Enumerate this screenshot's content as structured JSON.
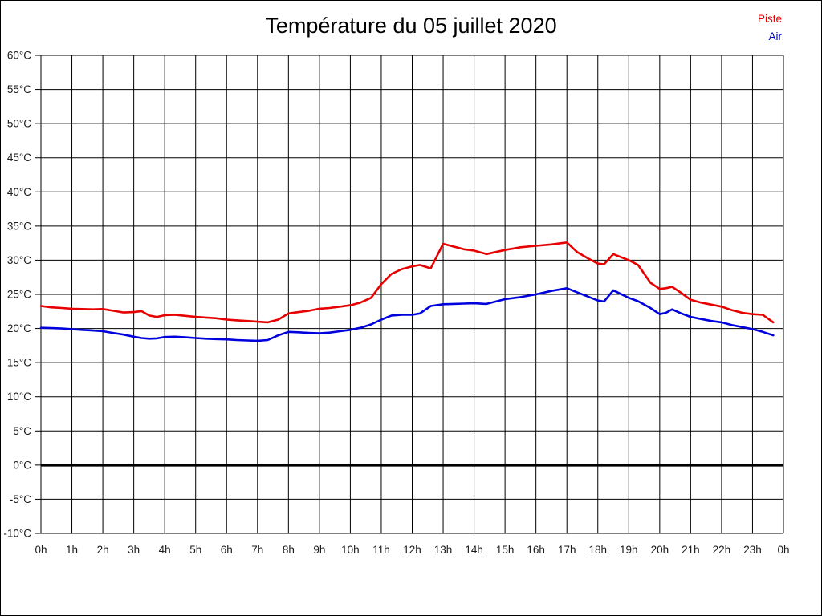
{
  "title": "Température du 05 juillet 2020",
  "legend": {
    "piste": "Piste",
    "air": "Air"
  },
  "colors": {
    "piste": "#e60000",
    "air": "#0000dd",
    "grid": "#000000",
    "zero_line": "#000000",
    "background": "#ffffff"
  },
  "chart_data": {
    "type": "line",
    "title": "Température du 05 juillet 2020",
    "xlabel": "",
    "ylabel": "",
    "xlim": [
      0,
      24
    ],
    "ylim": [
      -10,
      60
    ],
    "y_step": 5,
    "x_step_hours": 1,
    "grid": true,
    "zero_line_at": 0,
    "legend_position": "top-right",
    "x_tick_labels": [
      "0h",
      "1h",
      "2h",
      "3h",
      "4h",
      "5h",
      "6h",
      "7h",
      "8h",
      "9h",
      "10h",
      "11h",
      "12h",
      "13h",
      "14h",
      "15h",
      "16h",
      "17h",
      "18h",
      "19h",
      "20h",
      "21h",
      "22h",
      "23h",
      "0h"
    ],
    "y_tick_labels": [
      "60°C",
      "55°C",
      "50°C",
      "45°C",
      "40°C",
      "35°C",
      "30°C",
      "25°C",
      "20°C",
      "15°C",
      "10°C",
      "5°C",
      "0°C",
      "-5°C",
      "-10°C"
    ],
    "x_hours": [
      0,
      0.33,
      0.67,
      1,
      1.33,
      1.67,
      2,
      2.33,
      2.67,
      3,
      3.25,
      3.5,
      3.75,
      4,
      4.33,
      4.67,
      5,
      5.33,
      5.67,
      6,
      6.33,
      6.67,
      7,
      7.33,
      7.67,
      8,
      8.33,
      8.67,
      9,
      9.33,
      9.67,
      10,
      10.33,
      10.67,
      11,
      11.33,
      11.67,
      12,
      12.25,
      12.6,
      13,
      13.33,
      13.67,
      14,
      14.4,
      15,
      15.5,
      16,
      16.5,
      17,
      17.33,
      17.67,
      18,
      18.2,
      18.5,
      19,
      19.3,
      19.7,
      20,
      20.2,
      20.4,
      20.7,
      21,
      21.33,
      21.67,
      22,
      22.33,
      22.67,
      23,
      23.33,
      23.67
    ],
    "series": [
      {
        "name": "Piste",
        "color": "#e60000",
        "values": [
          23.3,
          23.1,
          23.0,
          22.9,
          22.85,
          22.8,
          22.85,
          22.6,
          22.35,
          22.4,
          22.55,
          21.9,
          21.7,
          21.95,
          22.0,
          21.85,
          21.7,
          21.6,
          21.5,
          21.3,
          21.2,
          21.1,
          21.0,
          20.9,
          21.3,
          22.2,
          22.4,
          22.6,
          22.9,
          23.0,
          23.2,
          23.4,
          23.8,
          24.5,
          26.5,
          28.0,
          28.7,
          29.1,
          29.3,
          28.8,
          32.4,
          32.0,
          31.6,
          31.4,
          30.9,
          31.5,
          31.9,
          32.1,
          32.3,
          32.6,
          31.2,
          30.3,
          29.5,
          29.4,
          30.9,
          30.0,
          29.3,
          26.7,
          25.8,
          25.9,
          26.1,
          25.2,
          24.2,
          23.8,
          23.5,
          23.2,
          22.7,
          22.3,
          22.1,
          22.0,
          20.9
        ]
      },
      {
        "name": "Air",
        "color": "#0000dd",
        "values": [
          20.1,
          20.05,
          20.0,
          19.9,
          19.8,
          19.7,
          19.6,
          19.35,
          19.1,
          18.8,
          18.6,
          18.5,
          18.55,
          18.75,
          18.8,
          18.7,
          18.6,
          18.5,
          18.45,
          18.4,
          18.3,
          18.25,
          18.2,
          18.3,
          19.0,
          19.5,
          19.45,
          19.35,
          19.3,
          19.4,
          19.6,
          19.8,
          20.1,
          20.6,
          21.3,
          21.9,
          22.0,
          22.0,
          22.2,
          23.3,
          23.55,
          23.6,
          23.65,
          23.7,
          23.6,
          24.3,
          24.6,
          25.0,
          25.5,
          25.9,
          25.3,
          24.7,
          24.1,
          23.95,
          25.6,
          24.5,
          24.0,
          23.0,
          22.1,
          22.3,
          22.8,
          22.2,
          21.7,
          21.4,
          21.1,
          20.9,
          20.5,
          20.2,
          19.9,
          19.5,
          19.0
        ]
      }
    ]
  }
}
